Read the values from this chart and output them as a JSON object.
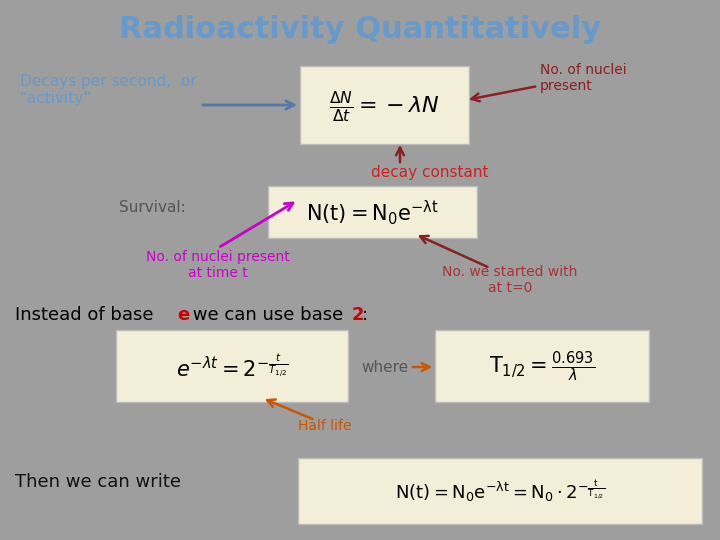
{
  "title": "Radioactivity Quantitatively",
  "title_color": "#6699CC",
  "bg_color": "#9E9E9E",
  "activity_label": "Decays per second,  or\n“activity”",
  "activity_color": "#6699CC",
  "no_nuclei_label": "No. of nuclei\npresent",
  "no_nuclei_color": "#8B2020",
  "decay_constant_label": "decay constant",
  "decay_constant_color": "#CC2222",
  "survival_label": "Survival:",
  "survival_color": "#555555",
  "no_nuclei_time_label": "No. of nuclei present\nat time t",
  "no_nuclei_time_color": "#CC00CC",
  "no_started_label": "No. we started with\nat t=0",
  "no_started_color": "#AA3333",
  "base_e_highlight": "#CC0000",
  "where_label": "where",
  "where_color": "#555555",
  "half_life_label": "Half life",
  "half_life_color": "#CC5500",
  "then_write_label": "Then we can write",
  "then_write_color": "#111111",
  "box_face": "#F2EED8",
  "box_edge": "#BBBBBB",
  "arrow_blue": "#5577AA",
  "arrow_red": "#882222",
  "arrow_magenta": "#CC00CC",
  "arrow_orange": "#CC5500"
}
